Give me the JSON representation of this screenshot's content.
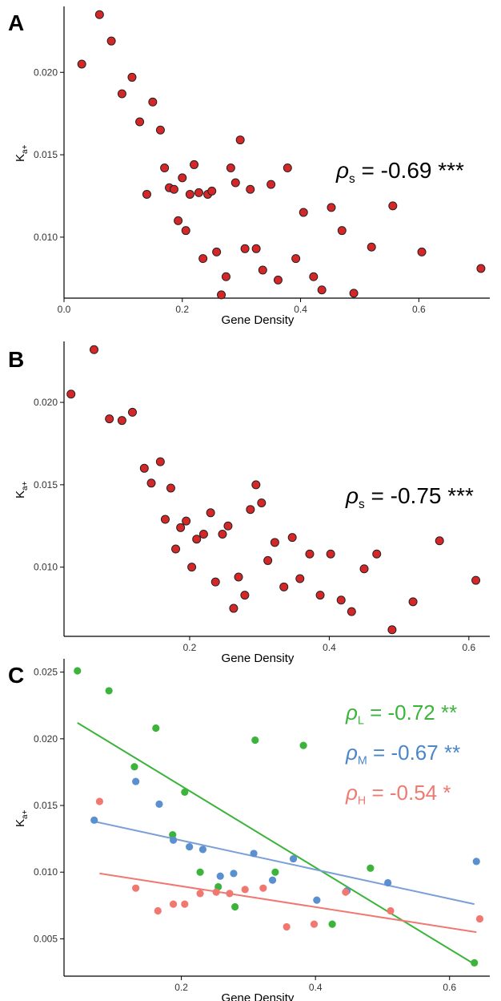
{
  "chart_data": [
    {
      "panel_label": "A",
      "type": "scatter",
      "xlabel": "Gene Density",
      "ylabel_main": "K",
      "ylabel_sub": "a+",
      "xlim": [
        0,
        0.72
      ],
      "ylim": [
        0.0063,
        0.024
      ],
      "xticks": [
        "0.0",
        "0.2",
        "0.4",
        "0.6"
      ],
      "yticks": [
        "0.010",
        "0.015",
        "0.020"
      ],
      "grid": false,
      "annotations": [
        {
          "rho": "ρ",
          "sub": "s",
          "text": " = -0.69 ***",
          "color": "#000000"
        }
      ],
      "series": [
        {
          "color": "#d62728",
          "points": [
            [
              0.03,
              0.0205
            ],
            [
              0.06,
              0.0235
            ],
            [
              0.08,
              0.0219
            ],
            [
              0.098,
              0.0187
            ],
            [
              0.115,
              0.0197
            ],
            [
              0.128,
              0.017
            ],
            [
              0.14,
              0.0126
            ],
            [
              0.15,
              0.0182
            ],
            [
              0.163,
              0.0165
            ],
            [
              0.17,
              0.0142
            ],
            [
              0.178,
              0.013
            ],
            [
              0.186,
              0.0129
            ],
            [
              0.193,
              0.011
            ],
            [
              0.2,
              0.0136
            ],
            [
              0.206,
              0.0104
            ],
            [
              0.213,
              0.0126
            ],
            [
              0.22,
              0.0144
            ],
            [
              0.228,
              0.0127
            ],
            [
              0.235,
              0.0087
            ],
            [
              0.243,
              0.0126
            ],
            [
              0.25,
              0.0128
            ],
            [
              0.258,
              0.0091
            ],
            [
              0.266,
              0.0065
            ],
            [
              0.274,
              0.0076
            ],
            [
              0.282,
              0.0142
            ],
            [
              0.29,
              0.0133
            ],
            [
              0.298,
              0.0159
            ],
            [
              0.306,
              0.0093
            ],
            [
              0.315,
              0.0129
            ],
            [
              0.325,
              0.0093
            ],
            [
              0.336,
              0.008
            ],
            [
              0.35,
              0.0132
            ],
            [
              0.362,
              0.0074
            ],
            [
              0.378,
              0.0142
            ],
            [
              0.392,
              0.0087
            ],
            [
              0.405,
              0.0115
            ],
            [
              0.422,
              0.0076
            ],
            [
              0.436,
              0.0068
            ],
            [
              0.452,
              0.0118
            ],
            [
              0.47,
              0.0104
            ],
            [
              0.49,
              0.0066
            ],
            [
              0.52,
              0.0094
            ],
            [
              0.556,
              0.0119
            ],
            [
              0.605,
              0.0091
            ],
            [
              0.705,
              0.0081
            ]
          ]
        }
      ],
      "fit_lines": []
    },
    {
      "panel_label": "B",
      "type": "scatter",
      "xlabel": "Gene Density",
      "ylabel_main": "K",
      "ylabel_sub": "a+",
      "xlim": [
        0.02,
        0.63
      ],
      "ylim": [
        0.0058,
        0.0237
      ],
      "xticks": [
        "0.2",
        "0.4",
        "0.6"
      ],
      "yticks": [
        "0.010",
        "0.015",
        "0.020"
      ],
      "grid": false,
      "annotations": [
        {
          "rho": "ρ",
          "sub": "s",
          "text": " = -0.75 ***",
          "color": "#000000"
        }
      ],
      "series": [
        {
          "color": "#d62728",
          "points": [
            [
              0.03,
              0.0205
            ],
            [
              0.063,
              0.0232
            ],
            [
              0.085,
              0.019
            ],
            [
              0.103,
              0.0189
            ],
            [
              0.118,
              0.0194
            ],
            [
              0.135,
              0.016
            ],
            [
              0.145,
              0.0151
            ],
            [
              0.158,
              0.0164
            ],
            [
              0.165,
              0.0129
            ],
            [
              0.173,
              0.0148
            ],
            [
              0.18,
              0.0111
            ],
            [
              0.187,
              0.0124
            ],
            [
              0.195,
              0.0128
            ],
            [
              0.203,
              0.01
            ],
            [
              0.21,
              0.0117
            ],
            [
              0.22,
              0.012
            ],
            [
              0.23,
              0.0133
            ],
            [
              0.237,
              0.0091
            ],
            [
              0.247,
              0.012
            ],
            [
              0.255,
              0.0125
            ],
            [
              0.263,
              0.0075
            ],
            [
              0.27,
              0.0094
            ],
            [
              0.279,
              0.0083
            ],
            [
              0.287,
              0.0135
            ],
            [
              0.295,
              0.015
            ],
            [
              0.303,
              0.0139
            ],
            [
              0.312,
              0.0104
            ],
            [
              0.322,
              0.0115
            ],
            [
              0.335,
              0.0088
            ],
            [
              0.347,
              0.0118
            ],
            [
              0.358,
              0.0093
            ],
            [
              0.372,
              0.0108
            ],
            [
              0.387,
              0.0083
            ],
            [
              0.402,
              0.0108
            ],
            [
              0.417,
              0.008
            ],
            [
              0.432,
              0.0073
            ],
            [
              0.45,
              0.0099
            ],
            [
              0.468,
              0.0108
            ],
            [
              0.49,
              0.0062
            ],
            [
              0.52,
              0.0079
            ],
            [
              0.558,
              0.0116
            ],
            [
              0.61,
              0.0092
            ]
          ]
        }
      ],
      "fit_lines": []
    },
    {
      "panel_label": "C",
      "type": "scatter",
      "xlabel": "Gene Density",
      "ylabel_main": "K",
      "ylabel_sub": "a+",
      "xlim": [
        0.025,
        0.66
      ],
      "ylim": [
        0.0022,
        0.026
      ],
      "xticks": [
        "0.2",
        "0.4",
        "0.6"
      ],
      "yticks": [
        "0.005",
        "0.010",
        "0.015",
        "0.020",
        "0.025"
      ],
      "grid": false,
      "annotations": [
        {
          "rho": "ρ",
          "sub": "L",
          "text": " = -0.72 **",
          "color": "#3cb43c"
        },
        {
          "rho": "ρ",
          "sub": "M",
          "text": " = -0.67 **",
          "color": "#4a86c8"
        },
        {
          "rho": "ρ",
          "sub": "H",
          "text": " = -0.54 *",
          "color": "#ee7b72"
        }
      ],
      "series": [
        {
          "color": "#3cb43c",
          "points": [
            [
              0.045,
              0.0251
            ],
            [
              0.092,
              0.0236
            ],
            [
              0.13,
              0.0179
            ],
            [
              0.162,
              0.0208
            ],
            [
              0.205,
              0.016
            ],
            [
              0.187,
              0.0128
            ],
            [
              0.228,
              0.01
            ],
            [
              0.255,
              0.0089
            ],
            [
              0.28,
              0.0074
            ],
            [
              0.31,
              0.0199
            ],
            [
              0.34,
              0.01
            ],
            [
              0.382,
              0.0195
            ],
            [
              0.425,
              0.0061
            ],
            [
              0.482,
              0.0103
            ],
            [
              0.637,
              0.0032
            ]
          ]
        },
        {
          "color": "#5a8fd0",
          "points": [
            [
              0.07,
              0.0139
            ],
            [
              0.132,
              0.0168
            ],
            [
              0.167,
              0.0151
            ],
            [
              0.188,
              0.0124
            ],
            [
              0.212,
              0.0119
            ],
            [
              0.232,
              0.0117
            ],
            [
              0.258,
              0.0097
            ],
            [
              0.278,
              0.0099
            ],
            [
              0.308,
              0.0114
            ],
            [
              0.336,
              0.0094
            ],
            [
              0.367,
              0.011
            ],
            [
              0.402,
              0.0079
            ],
            [
              0.447,
              0.0086
            ],
            [
              0.508,
              0.0092
            ],
            [
              0.64,
              0.0108
            ]
          ]
        },
        {
          "color": "#f07870",
          "points": [
            [
              0.078,
              0.0153
            ],
            [
              0.132,
              0.0088
            ],
            [
              0.165,
              0.0071
            ],
            [
              0.188,
              0.0076
            ],
            [
              0.205,
              0.0076
            ],
            [
              0.228,
              0.0084
            ],
            [
              0.252,
              0.0085
            ],
            [
              0.272,
              0.0084
            ],
            [
              0.295,
              0.0087
            ],
            [
              0.322,
              0.0088
            ],
            [
              0.357,
              0.0059
            ],
            [
              0.398,
              0.0061
            ],
            [
              0.445,
              0.0085
            ],
            [
              0.512,
              0.0071
            ],
            [
              0.645,
              0.0065
            ]
          ]
        }
      ],
      "fit_lines": [
        {
          "color": "#3cb43c",
          "from": [
            0.045,
            0.0212
          ],
          "to": [
            0.637,
            0.0031
          ]
        },
        {
          "color": "#7a9fd6",
          "from": [
            0.07,
            0.0138
          ],
          "to": [
            0.637,
            0.0076
          ]
        },
        {
          "color": "#f07870",
          "from": [
            0.078,
            0.0099
          ],
          "to": [
            0.64,
            0.0055
          ]
        }
      ]
    }
  ]
}
